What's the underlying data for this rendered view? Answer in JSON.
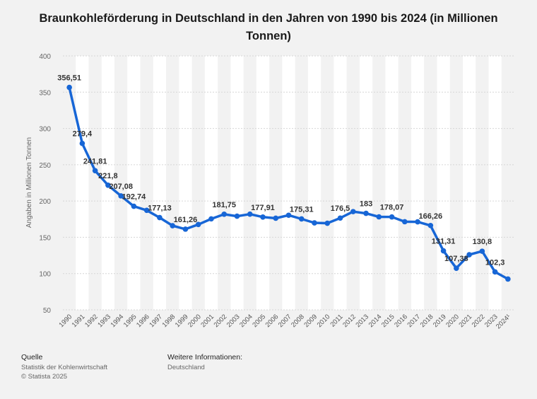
{
  "chart_data": {
    "type": "line",
    "title": "Braunkohleförderung in Deutschland in den Jahren von 1990 bis 2024 (in Millionen Tonnen)",
    "ylabel": "Angaben in Millionen Tonnen",
    "xlabel": "",
    "ylim": [
      50,
      400
    ],
    "yticks": [
      50,
      100,
      150,
      200,
      250,
      300,
      350,
      400
    ],
    "grid": true,
    "categories": [
      "1990",
      "1991",
      "1992",
      "1993",
      "1994",
      "1995",
      "1996",
      "1997",
      "1998",
      "1999",
      "2000",
      "2001",
      "2002",
      "2003",
      "2004",
      "2005",
      "2006",
      "2007",
      "2008",
      "2009",
      "2010",
      "2011",
      "2012",
      "2013",
      "2014",
      "2015",
      "2016",
      "2017",
      "2018",
      "2019",
      "2020",
      "2021",
      "2022",
      "2023",
      "2024¹"
    ],
    "series": [
      {
        "color": "#1766d6",
        "values": [
          356.51,
          279.4,
          241.81,
          221.8,
          207.08,
          192.74,
          187.2,
          177.13,
          166.0,
          161.26,
          167.7,
          175.4,
          181.75,
          179.1,
          181.9,
          177.91,
          176.3,
          180.4,
          175.31,
          169.9,
          169.4,
          176.5,
          185.4,
          183,
          178.2,
          178.07,
          171.5,
          171.3,
          166.26,
          131.31,
          107.38,
          126.0,
          130.8,
          102.3,
          92.5
        ],
        "labels": [
          "356,51",
          "279,4",
          "241,81",
          "221,8",
          "207,08",
          "192,74",
          "",
          "177,13",
          "",
          "161,26",
          "",
          "",
          "181,75",
          "",
          "",
          "177,91",
          "",
          "",
          "175,31",
          "",
          "",
          "176,5",
          "",
          "183",
          "",
          "178,07",
          "",
          "",
          "166,26",
          "131,31",
          "107,38",
          "",
          "130,8",
          "102,3",
          ""
        ]
      }
    ]
  },
  "footer": {
    "source_heading": "Quelle",
    "source_line1": "Statistik der Kohlenwirtschaft",
    "source_line2": "© Statista 2025",
    "info_heading": "Weitere Informationen:",
    "info_line1": "Deutschland"
  }
}
